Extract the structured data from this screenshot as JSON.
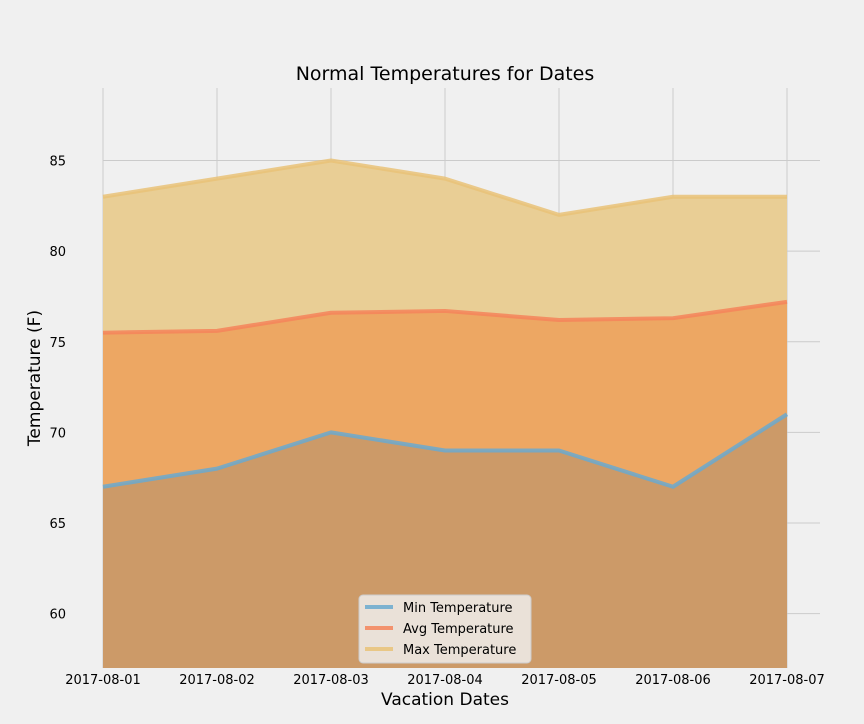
{
  "chart_data": {
    "type": "area",
    "title": "Normal Temperatures for Dates",
    "xlabel": "Vacation Dates",
    "ylabel": "Temperature (F)",
    "categories": [
      "2017-08-01",
      "2017-08-02",
      "2017-08-03",
      "2017-08-04",
      "2017-08-05",
      "2017-08-06",
      "2017-08-07"
    ],
    "ylim": [
      57,
      89
    ],
    "yticks": [
      60,
      65,
      70,
      75,
      80,
      85
    ],
    "grid": true,
    "stacked": false,
    "legend_position": "bottom-center",
    "series": [
      {
        "name": "Min Temperature",
        "color": "#6aa9cf",
        "values": [
          67,
          68,
          70,
          69,
          69,
          67,
          71
        ]
      },
      {
        "name": "Avg Temperature",
        "color": "#f4845b",
        "values": [
          75.5,
          75.6,
          76.6,
          76.7,
          76.2,
          76.3,
          77.2
        ]
      },
      {
        "name": "Max Temperature",
        "color": "#e9c278",
        "values": [
          83,
          84,
          85,
          84,
          82,
          83,
          83
        ]
      }
    ],
    "fill_colors": [
      "#cc9a68",
      "#eda763",
      "#e9ce95"
    ]
  }
}
